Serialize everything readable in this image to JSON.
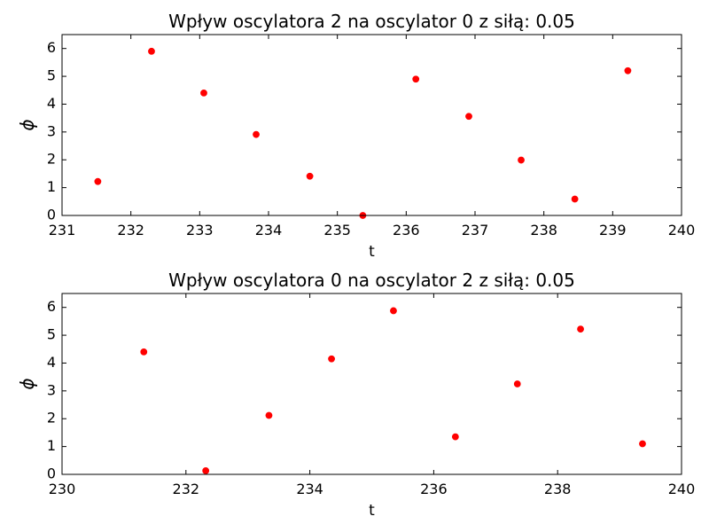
{
  "chart_data": [
    {
      "type": "scatter",
      "title": "Wpływ oscylatora 2 na oscylator 0 z siłą: 0.05",
      "xlabel": "t",
      "ylabel": "ϕ",
      "xlim": [
        231,
        240
      ],
      "ylim": [
        0,
        6.5
      ],
      "xticks": [
        "231",
        "232",
        "233",
        "234",
        "235",
        "236",
        "237",
        "238",
        "239",
        "240"
      ],
      "yticks": [
        "0",
        "1",
        "2",
        "3",
        "4",
        "5",
        "6"
      ],
      "grid": false,
      "marker_color": "#ff0000",
      "points": [
        {
          "x": 231.52,
          "y": 1.22
        },
        {
          "x": 232.3,
          "y": 5.9
        },
        {
          "x": 233.06,
          "y": 4.4
        },
        {
          "x": 233.82,
          "y": 2.91
        },
        {
          "x": 234.6,
          "y": 1.41
        },
        {
          "x": 235.37,
          "y": 0.0
        },
        {
          "x": 236.14,
          "y": 4.9
        },
        {
          "x": 236.91,
          "y": 3.56
        },
        {
          "x": 237.67,
          "y": 1.99
        },
        {
          "x": 238.45,
          "y": 0.59
        },
        {
          "x": 239.22,
          "y": 5.2
        }
      ]
    },
    {
      "type": "scatter",
      "title": "Wpływ oscylatora 0 na oscylator 2 z siłą: 0.05",
      "xlabel": "t",
      "ylabel": "ϕ",
      "xlim": [
        230,
        240
      ],
      "ylim": [
        0,
        6.5
      ],
      "xticks": [
        "230",
        "232",
        "234",
        "236",
        "238",
        "240"
      ],
      "yticks": [
        "0",
        "1",
        "2",
        "3",
        "4",
        "5",
        "6"
      ],
      "grid": false,
      "marker_color": "#ff0000",
      "points": [
        {
          "x": 231.32,
          "y": 4.4
        },
        {
          "x": 232.32,
          "y": 0.13
        },
        {
          "x": 233.34,
          "y": 2.12
        },
        {
          "x": 234.35,
          "y": 4.15
        },
        {
          "x": 235.35,
          "y": 5.88
        },
        {
          "x": 236.35,
          "y": 1.35
        },
        {
          "x": 237.35,
          "y": 3.25
        },
        {
          "x": 238.37,
          "y": 5.22
        },
        {
          "x": 239.37,
          "y": 1.1
        }
      ]
    }
  ]
}
